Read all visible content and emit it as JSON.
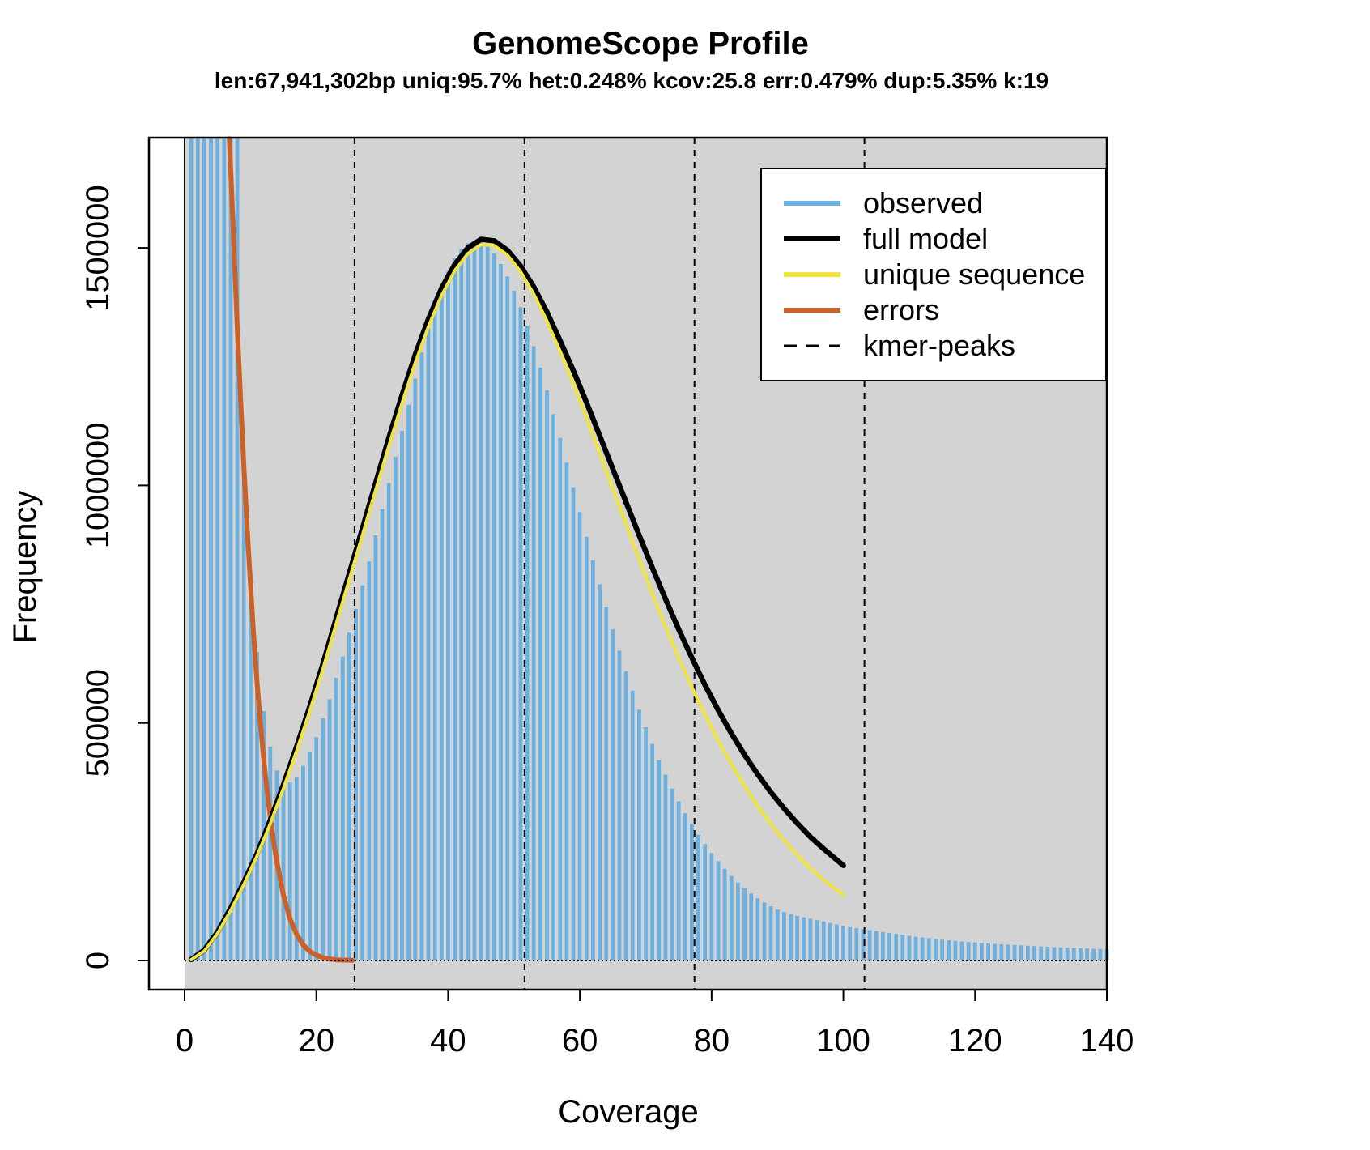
{
  "chart_data": {
    "type": "bar",
    "title": "GenomeScope Profile",
    "subtitle": "len:67,941,302bp uniq:95.7%  het:0.248% kcov:25.8 err:0.479%  dup:5.35%  k:19",
    "xlabel": "Coverage",
    "ylabel": "Frequency",
    "xlim": [
      0,
      140
    ],
    "ylim": [
      0,
      1730000
    ],
    "x_ticks": [
      "0",
      "20",
      "40",
      "60",
      "80",
      "100",
      "120",
      "140"
    ],
    "y_ticks": [
      "0",
      "500000",
      "1000000",
      "1500000"
    ],
    "background": "#d3d3d3",
    "legend_position": "top-right",
    "legend": [
      {
        "label": "observed",
        "color": "#6cb0e0",
        "style": "solid"
      },
      {
        "label": "full model",
        "color": "#000000",
        "style": "solid"
      },
      {
        "label": "unique sequence",
        "color": "#f0e442",
        "style": "solid"
      },
      {
        "label": "errors",
        "color": "#cc6128",
        "style": "solid"
      },
      {
        "label": "kmer-peaks",
        "color": "#000000",
        "style": "dashed"
      }
    ],
    "kmer_peaks": [
      25.8,
      51.6,
      77.4,
      103.2
    ],
    "observed": {
      "x": [
        1,
        2,
        3,
        4,
        5,
        6,
        7,
        8,
        9,
        10,
        11,
        12,
        13,
        14,
        15,
        16,
        17,
        18,
        19,
        20,
        21,
        22,
        23,
        24,
        25,
        26,
        27,
        28,
        29,
        30,
        31,
        32,
        33,
        34,
        35,
        36,
        37,
        38,
        39,
        40,
        41,
        42,
        43,
        44,
        45,
        46,
        47,
        48,
        49,
        50,
        51,
        52,
        53,
        54,
        55,
        56,
        57,
        58,
        59,
        60,
        61,
        62,
        63,
        64,
        65,
        66,
        67,
        68,
        69,
        70,
        71,
        72,
        73,
        74,
        75,
        76,
        77,
        78,
        79,
        80,
        81,
        82,
        83,
        84,
        85,
        86,
        87,
        88,
        89,
        90,
        91,
        92,
        93,
        94,
        95,
        96,
        97,
        98,
        99,
        100,
        101,
        102,
        103,
        104,
        105,
        106,
        107,
        108,
        109,
        110,
        111,
        112,
        113,
        114,
        115,
        116,
        117,
        118,
        119,
        120,
        121,
        122,
        123,
        124,
        125,
        126,
        127,
        128,
        129,
        130,
        131,
        132,
        133,
        134,
        135,
        136,
        137,
        138,
        139,
        140
      ],
      "values": [
        1730000,
        1730000,
        1730000,
        1730000,
        1730000,
        1730000,
        1730000,
        1730000,
        1060000,
        820000,
        650000,
        525000,
        450000,
        400000,
        380000,
        375000,
        385000,
        410000,
        440000,
        470000,
        510000,
        550000,
        595000,
        640000,
        690000,
        740000,
        790000,
        840000,
        895000,
        950000,
        1005000,
        1060000,
        1115000,
        1170000,
        1225000,
        1280000,
        1330000,
        1375000,
        1415000,
        1450000,
        1478000,
        1498000,
        1510000,
        1514000,
        1512000,
        1504000,
        1488000,
        1466000,
        1440000,
        1410000,
        1375000,
        1336000,
        1293000,
        1248000,
        1200000,
        1150000,
        1100000,
        1048000,
        996000,
        944000,
        892000,
        842000,
        792000,
        744000,
        697000,
        652000,
        609000,
        568000,
        528000,
        491000,
        456000,
        422000,
        391000,
        362000,
        335000,
        310000,
        287000,
        265000,
        245000,
        226000,
        209000,
        193000,
        178000,
        164000,
        152000,
        141000,
        131000,
        122000,
        114000,
        107000,
        102000,
        98000,
        94000,
        91000,
        88000,
        85000,
        82000,
        79000,
        76000,
        73000,
        70000,
        68000,
        66000,
        64000,
        62000,
        60000,
        58000,
        56000,
        54000,
        52000,
        50000,
        48500,
        47000,
        45500,
        44000,
        42500,
        41000,
        40000,
        39000,
        38000,
        37000,
        36000,
        35000,
        34200,
        33400,
        32600,
        31800,
        31000,
        30300,
        29600,
        28900,
        28200,
        27600,
        27000,
        26400,
        25800,
        25200,
        24700,
        24200,
        23700
      ]
    },
    "full_model": {
      "x": [
        1,
        3,
        5,
        7,
        9,
        11,
        13,
        15,
        17,
        19,
        21,
        23,
        25,
        27,
        29,
        31,
        33,
        35,
        37,
        39,
        41,
        43,
        45,
        47,
        49,
        51,
        53,
        55,
        57,
        59,
        61,
        63,
        65,
        67,
        69,
        71,
        73,
        75,
        77,
        79,
        81,
        83,
        85,
        87,
        89,
        91,
        93,
        95,
        97,
        100
      ],
      "values": [
        2000,
        22000,
        60000,
        110000,
        165000,
        225000,
        295000,
        370000,
        450000,
        535000,
        625000,
        720000,
        815000,
        910000,
        1005000,
        1100000,
        1190000,
        1275000,
        1350000,
        1415000,
        1465000,
        1500000,
        1518000,
        1515000,
        1495000,
        1462000,
        1418000,
        1365000,
        1305000,
        1242000,
        1175000,
        1105000,
        1035000,
        965000,
        895000,
        827000,
        761000,
        697000,
        637000,
        580000,
        527000,
        478000,
        433000,
        392000,
        354000,
        320000,
        289000,
        260000,
        235000,
        200000
      ]
    },
    "unique_sequence": {
      "x": [
        1,
        3,
        5,
        7,
        9,
        11,
        13,
        15,
        17,
        19,
        21,
        23,
        25,
        27,
        29,
        31,
        33,
        35,
        37,
        39,
        41,
        43,
        45,
        47,
        49,
        51,
        53,
        55,
        57,
        59,
        61,
        63,
        65,
        67,
        69,
        71,
        73,
        75,
        77,
        79,
        81,
        83,
        85,
        87,
        89,
        91,
        93,
        95,
        97,
        100
      ],
      "values": [
        1500,
        20000,
        57000,
        105000,
        160000,
        220000,
        288000,
        362000,
        441000,
        525000,
        614000,
        708000,
        802000,
        896000,
        990000,
        1083000,
        1173000,
        1258000,
        1334000,
        1400000,
        1452000,
        1488000,
        1507000,
        1505000,
        1485000,
        1450000,
        1403000,
        1346000,
        1282000,
        1214000,
        1142000,
        1068000,
        993000,
        918000,
        844000,
        772000,
        703000,
        637000,
        575000,
        517000,
        463000,
        413000,
        367000,
        325000,
        287000,
        253000,
        222000,
        194000,
        170000,
        138000
      ]
    },
    "errors": {
      "x": [
        6.8,
        7.5,
        8,
        8.5,
        9,
        9.5,
        10,
        10.5,
        11,
        11.5,
        12,
        12.5,
        13,
        13.5,
        14,
        15,
        16,
        17,
        18,
        19,
        20,
        21,
        22,
        23,
        24,
        25.5
      ],
      "values": [
        1730000,
        1500000,
        1330000,
        1180000,
        1040000,
        910000,
        790000,
        680000,
        585000,
        500000,
        425000,
        360000,
        302000,
        252000,
        208000,
        138000,
        88000,
        55000,
        33000,
        19000,
        11000,
        6000,
        3000,
        1500,
        800,
        400
      ]
    }
  }
}
